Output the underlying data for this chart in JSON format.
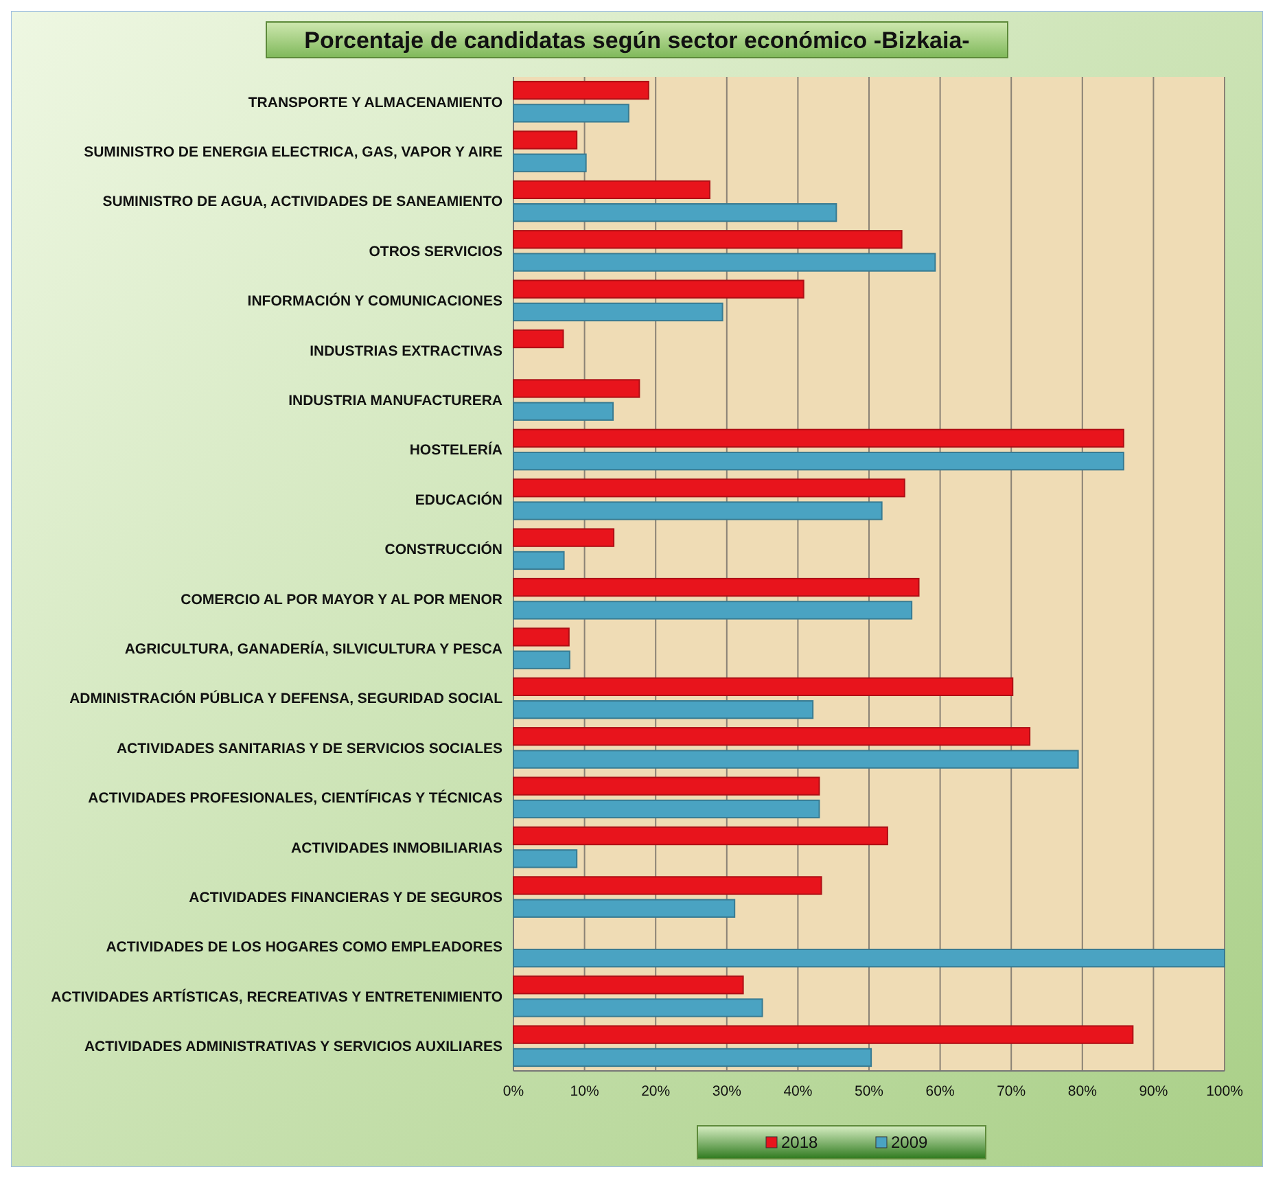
{
  "chart_data": {
    "type": "bar",
    "orientation": "horizontal",
    "title": "Porcentaje de candidatas según sector económico -Bizkaia-",
    "categories": [
      "TRANSPORTE Y ALMACENAMIENTO",
      "SUMINISTRO DE ENERGIA ELECTRICA, GAS, VAPOR Y AIRE",
      "SUMINISTRO DE AGUA, ACTIVIDADES DE SANEAMIENTO",
      "OTROS SERVICIOS",
      "INFORMACIÓN Y COMUNICACIONES",
      "INDUSTRIAS EXTRACTIVAS",
      "INDUSTRIA MANUFACTURERA",
      "HOSTELERÍA",
      "EDUCACIÓN",
      "CONSTRUCCIÓN",
      "COMERCIO AL POR MAYOR Y AL POR MENOR",
      "AGRICULTURA, GANADERÍA, SILVICULTURA Y PESCA",
      "ADMINISTRACIÓN PÚBLICA Y DEFENSA, SEGURIDAD SOCIAL",
      "ACTIVIDADES SANITARIAS Y DE SERVICIOS SOCIALES",
      "ACTIVIDADES PROFESIONALES, CIENTÍFICAS Y TÉCNICAS",
      "ACTIVIDADES INMOBILIARIAS",
      "ACTIVIDADES FINANCIERAS Y DE SEGUROS",
      "ACTIVIDADES DE LOS HOGARES COMO EMPLEADORES",
      "ACTIVIDADES ARTÍSTICAS, RECREATIVAS Y ENTRETENIMIENTO",
      "ACTIVIDADES ADMINISTRATIVAS Y SERVICIOS AUXILIARES"
    ],
    "series": [
      {
        "name": "2018",
        "color": "#e8141c",
        "values": [
          19,
          8.9,
          27.6,
          54.6,
          40.8,
          7,
          17.7,
          85.8,
          55,
          14.1,
          57,
          7.8,
          70.2,
          72.6,
          43,
          52.6,
          43.3,
          null,
          32.3,
          87.1
        ]
      },
      {
        "name": "2009",
        "color": "#4aa3c2",
        "values": [
          16.2,
          10.2,
          45.4,
          59.3,
          29.4,
          null,
          14,
          85.8,
          51.8,
          7.1,
          56,
          7.9,
          42.1,
          79.4,
          43,
          8.9,
          31.1,
          100,
          35,
          50.3
        ]
      }
    ],
    "xlim": [
      0,
      100
    ],
    "xticks": [
      {
        "value": 0,
        "label": "0%"
      },
      {
        "value": 10,
        "label": "10%"
      },
      {
        "value": 20,
        "label": "20%"
      },
      {
        "value": 30,
        "label": "30%"
      },
      {
        "value": 40,
        "label": "40%"
      },
      {
        "value": 50,
        "label": "50%"
      },
      {
        "value": 60,
        "label": "60%"
      },
      {
        "value": 70,
        "label": "70%"
      },
      {
        "value": 80,
        "label": "80%"
      },
      {
        "value": 90,
        "label": "90%"
      },
      {
        "value": 100,
        "label": "100%"
      }
    ],
    "grid": "x",
    "legend": "bottom"
  }
}
